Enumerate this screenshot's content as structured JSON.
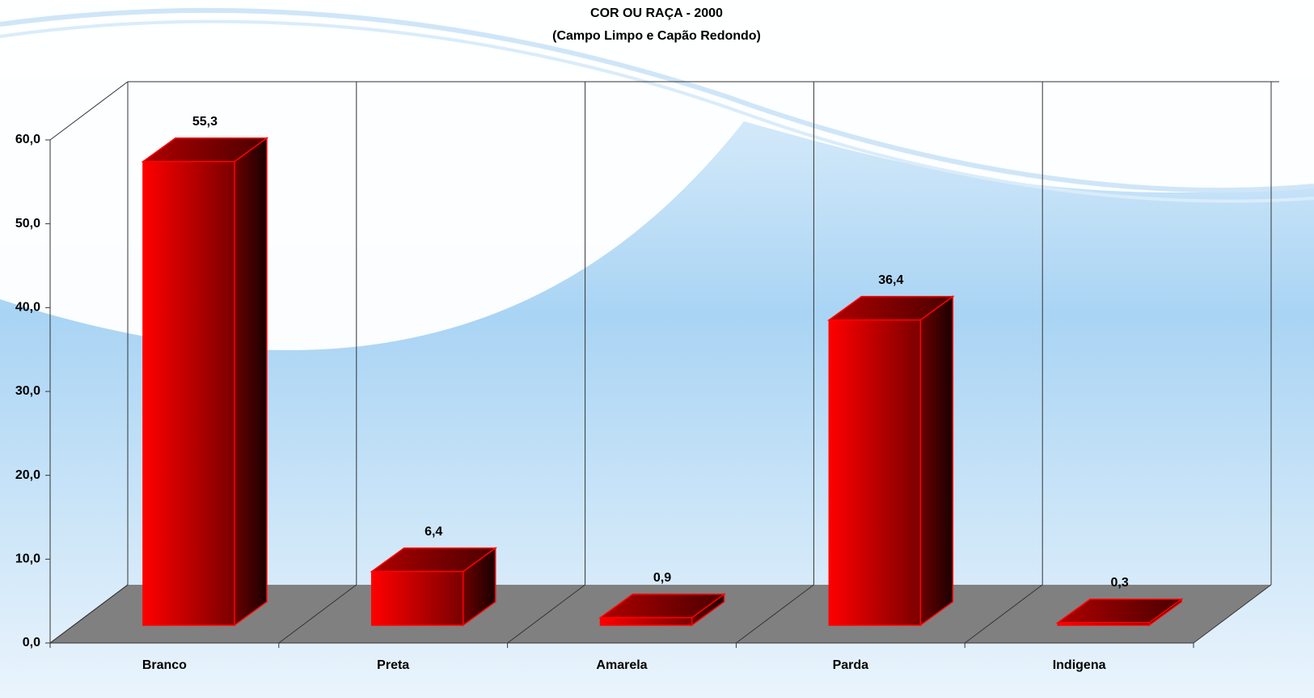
{
  "chart_data": {
    "type": "bar3d",
    "title": "COR OU RAÇA - 2000",
    "subtitle": "(Campo Limpo e Capão Redondo)",
    "categories": [
      "Branco",
      "Preta",
      "Amarela",
      "Parda",
      "Indigena"
    ],
    "values": [
      55.3,
      6.4,
      0.9,
      36.4,
      0.3
    ],
    "value_labels": [
      "55,3",
      "6,4",
      "0,9",
      "36,4",
      "0,3"
    ],
    "color": "#ff0000",
    "ylim": [
      0,
      60
    ],
    "yticks": [
      {
        "value": 0,
        "label": "0,0"
      },
      {
        "value": 10,
        "label": "10,0"
      },
      {
        "value": 20,
        "label": "20,0"
      },
      {
        "value": 30,
        "label": "30,0"
      },
      {
        "value": 40,
        "label": "40,0"
      },
      {
        "value": 50,
        "label": "50,0"
      },
      {
        "value": 60,
        "label": "60,0"
      }
    ]
  }
}
